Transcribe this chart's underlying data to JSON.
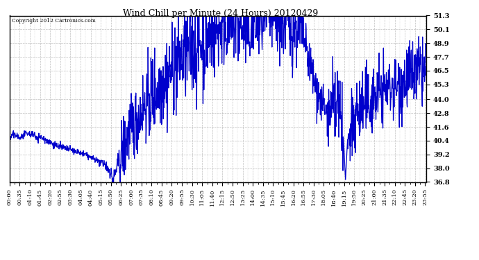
{
  "title": "Wind Chill per Minute (24 Hours) 20120429",
  "copyright_text": "Copyright 2012 Cartronics.com",
  "line_color": "#0000CC",
  "background_color": "#ffffff",
  "grid_color": "#b0b0b0",
  "ylim": [
    36.8,
    51.3
  ],
  "yticks": [
    36.8,
    38.0,
    39.2,
    40.4,
    41.6,
    42.8,
    44.0,
    45.3,
    46.5,
    47.7,
    48.9,
    50.1,
    51.3
  ],
  "xtick_step": 35,
  "line_width": 0.9,
  "title_fontsize": 9,
  "tick_fontsize": 6,
  "ylabel_fontsize": 7
}
